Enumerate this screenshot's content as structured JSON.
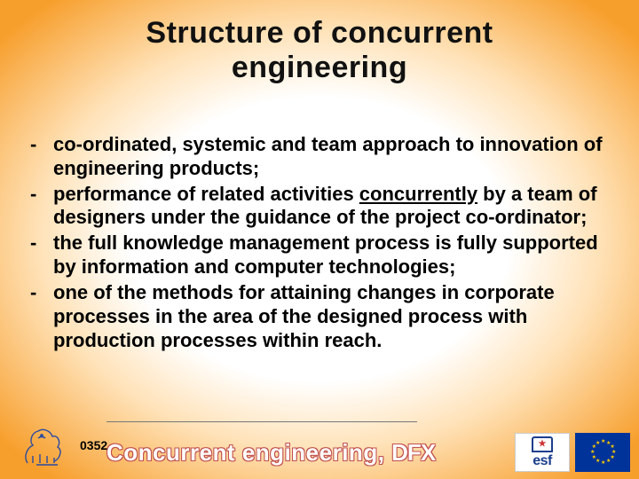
{
  "title": {
    "line1": "Structure of concurrent",
    "line2": "engineering",
    "fontsize": 34,
    "color": "#111111"
  },
  "content": {
    "fontsize": 22,
    "lineheight": 1.22,
    "bullets": [
      {
        "segments": [
          {
            "text": "co-ordinated, systemic and team approach to innovation of engineering products;"
          }
        ]
      },
      {
        "segments": [
          {
            "text": "performance of related activities "
          },
          {
            "text": "concurrently",
            "underline": true
          },
          {
            "text": " by a team of designers under the guidance of the project co-ordinator;"
          }
        ]
      },
      {
        "segments": [
          {
            "text": "the full knowledge management process is fully supported by information and computer technologies;"
          }
        ]
      },
      {
        "segments": [
          {
            "text": "one of the methods for attaining changes in corporate processes in the area of the designed process with production processes within reach."
          }
        ]
      }
    ]
  },
  "footer": {
    "page_number": "0352",
    "title_text": "Concurrent engineering, ",
    "title_dfx": "DFX",
    "title_fontsize": 26,
    "title_outline_color": "#c0504d",
    "title_fill_color": "#ffffff",
    "esf_label": "esf",
    "esf_text_color": "#1b3d8c",
    "eu_flag_bg": "#003399",
    "eu_star_color": "#ffcc00"
  },
  "background": {
    "center_color": "#ffffff",
    "edge_color": "#f79f2d",
    "mid_color": "#ffe2b8"
  }
}
